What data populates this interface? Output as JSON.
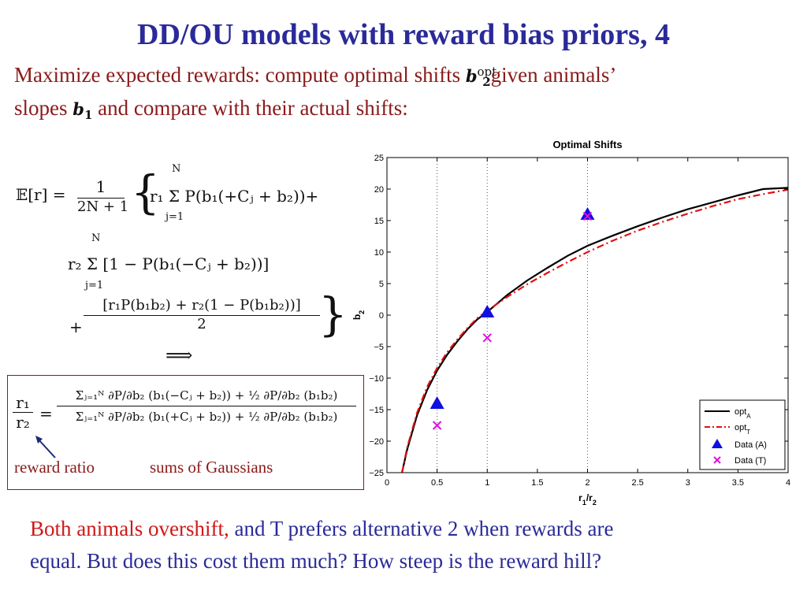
{
  "slide": {
    "title": "DD/OU models with reward bias priors, 4",
    "intro_part1": "Maximize expected rewards: compute optimal shifts",
    "intro_part2": "given animals’",
    "intro_part3": "slopes",
    "intro_part4": "and compare with their actual shifts:",
    "symbol_b2": "b",
    "symbol_b2_sup": "opt",
    "symbol_b2_sub": "2",
    "symbol_b1": "b",
    "symbol_b1_sub": "1",
    "caption_reward_ratio": "reward ratio",
    "caption_sums": "sums of Gaussians",
    "bottom_red": "Both animals overshift,",
    "bottom_rest1": " and T prefers alternative 2 when rewards are",
    "bottom_line2": "equal. But does this cost them much? How steep is the reward hill?"
  },
  "equations": {
    "eq1_lhs": "𝔼[r] =",
    "eq1_frac_num": "1",
    "eq1_frac_den": "2N + 1",
    "eq1_body": "r₁ Σ P(b₁(+Cⱼ + b₂))+",
    "sum_top": "N",
    "sum_bottom": "j=1",
    "eq2_body": "r₂ Σ [1 − P(b₁(−Cⱼ + b₂))]",
    "eq3_num": "[r₁P(b₁b₂) + r₂(1 − P(b₁b₂))]",
    "eq3_den": "2",
    "plus": "+",
    "implies": "⟹",
    "ratio_lhs_num": "r₁",
    "ratio_lhs_den": "r₂",
    "ratio_num": "Σⱼ₌₁ᴺ ∂P/∂b₂ (b₁(−Cⱼ + b₂)) + ½ ∂P/∂b₂ (b₁b₂)",
    "ratio_den": "Σⱼ₌₁ᴺ ∂P/∂b₂ (b₁(+Cⱼ + b₂)) + ½ ∂P/∂b₂ (b₁b₂)",
    "equals": "="
  },
  "chart_data": {
    "type": "line",
    "title": "Optimal Shifts",
    "xlabel": "r1/r2",
    "ylabel": "b2",
    "xlim": [
      0,
      4
    ],
    "ylim": [
      -25,
      25
    ],
    "xticks": [
      0,
      0.5,
      1,
      1.5,
      2,
      2.5,
      3,
      3.5,
      4
    ],
    "yticks": [
      -25,
      -20,
      -15,
      -10,
      -5,
      0,
      5,
      10,
      15,
      20,
      25
    ],
    "vertical_dotted_lines": [
      0.5,
      1,
      2
    ],
    "legend_position": "bottom-right",
    "series": [
      {
        "name": "opt_A",
        "style": "solid",
        "color": "#000000",
        "x": [
          0.15,
          0.2,
          0.3,
          0.4,
          0.5,
          0.6,
          0.7,
          0.8,
          0.9,
          1.0,
          1.2,
          1.4,
          1.6,
          1.8,
          2.0,
          2.25,
          2.5,
          2.75,
          3.0,
          3.25,
          3.5,
          3.75,
          4.0
        ],
        "y": [
          -25,
          -21.4,
          -15.9,
          -11.9,
          -8.8,
          -6.3,
          -4.2,
          -2.3,
          -0.7,
          0.5,
          3.2,
          5.5,
          7.5,
          9.4,
          11.0,
          12.6,
          14.1,
          15.5,
          16.8,
          17.9,
          19.0,
          20.0,
          20.2
        ]
      },
      {
        "name": "opt_T",
        "style": "dashdot",
        "color": "#e01010",
        "x": [
          0.15,
          0.2,
          0.3,
          0.4,
          0.5,
          0.6,
          0.7,
          0.8,
          0.9,
          1.0,
          1.2,
          1.4,
          1.6,
          1.8,
          2.0,
          2.25,
          2.5,
          2.75,
          3.0,
          3.25,
          3.5,
          3.75,
          4.0
        ],
        "y": [
          -25,
          -21.1,
          -15.5,
          -11.4,
          -8.4,
          -5.9,
          -3.9,
          -2.1,
          -0.5,
          0.7,
          2.9,
          4.9,
          6.7,
          8.4,
          10.0,
          11.8,
          13.4,
          14.8,
          16.1,
          17.3,
          18.4,
          19.2,
          19.9
        ]
      },
      {
        "name": "Data (A)",
        "marker": "triangle",
        "color": "#1010e0",
        "x": [
          0.5,
          1,
          2
        ],
        "y": [
          -14,
          0.5,
          16
        ]
      },
      {
        "name": "Data (T)",
        "marker": "x",
        "color": "#e010e0",
        "x": [
          0.5,
          1,
          2
        ],
        "y": [
          -17.5,
          -3.6,
          15.7
        ]
      }
    ],
    "legend_labels": {
      "optA_main": "opt",
      "optA_sub": "A",
      "optT_main": "opt",
      "optT_sub": "T",
      "dataA": "Data (A)",
      "dataT": "Data (T)"
    },
    "xlabel_main": "r",
    "xlabel_sub1": "1",
    "xlabel_slash": "/r",
    "xlabel_sub2": "2",
    "ylabel_main": "b",
    "ylabel_sub": "2"
  }
}
